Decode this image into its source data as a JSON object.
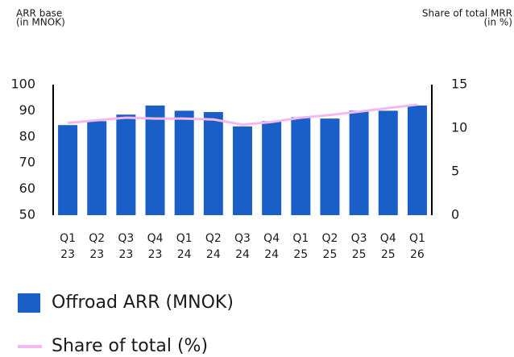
{
  "chart_data": {
    "type": "bar_line",
    "y_label": [
      "ARR base",
      "(in MNOK)"
    ],
    "y2_label": [
      "Share of total MRR",
      "(in %)"
    ],
    "categories": [
      [
        "Q1",
        "23"
      ],
      [
        "Q2",
        "23"
      ],
      [
        "Q3",
        "23"
      ],
      [
        "Q4",
        "23"
      ],
      [
        "Q1",
        "24"
      ],
      [
        "Q2",
        "24"
      ],
      [
        "Q3",
        "24"
      ],
      [
        "Q4",
        "24"
      ],
      [
        "Q1",
        "25"
      ],
      [
        "Q2",
        "25"
      ],
      [
        "Q3",
        "25"
      ],
      [
        "Q4",
        "25"
      ],
      [
        "Q1",
        "26"
      ]
    ],
    "series": [
      {
        "name": "Offroad ARR (MNOK)",
        "type": "bar",
        "color": "#1a5fc8",
        "values": [
          84.5,
          86,
          88.5,
          92,
          90,
          89.5,
          84,
          86,
          87.5,
          87,
          90,
          90,
          92
        ]
      },
      {
        "name": "Share of total (%)",
        "type": "line",
        "axis": "y2",
        "color": "#f4b8ee",
        "values": [
          10.6,
          10.9,
          11.2,
          11.1,
          11.1,
          11.0,
          10.4,
          10.7,
          11.2,
          11.5,
          11.9,
          12.3,
          12.7
        ]
      }
    ],
    "ylim": [
      50,
      100
    ],
    "yticks": [
      50,
      60,
      70,
      80,
      90,
      100
    ],
    "y2lim": [
      0,
      15
    ],
    "y2ticks": [
      0,
      5,
      10,
      15
    ]
  }
}
